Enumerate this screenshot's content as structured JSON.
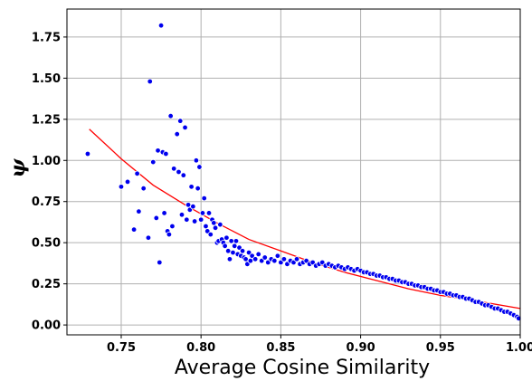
{
  "chart_data": {
    "type": "scatter",
    "title": "",
    "xlabel": "Average Cosine Similarity",
    "ylabel": "ψ",
    "xlim": [
      0.716,
      1.0
    ],
    "ylim": [
      -0.06,
      1.92
    ],
    "xticks": [
      0.75,
      0.8,
      0.85,
      0.9,
      0.95,
      1.0
    ],
    "xtick_labels": [
      "0.75",
      "0.80",
      "0.85",
      "0.90",
      "0.95",
      "1.00"
    ],
    "yticks": [
      0.0,
      0.25,
      0.5,
      0.75,
      1.0,
      1.25,
      1.5,
      1.75
    ],
    "ytick_labels": [
      "0.00",
      "0.25",
      "0.50",
      "0.75",
      "1.00",
      "1.25",
      "1.50",
      "1.75"
    ],
    "grid": true,
    "colors": {
      "points": "#0000ee",
      "fit": "#ff0000"
    },
    "series": [
      {
        "kind": "points",
        "x": [
          0.729,
          0.75,
          0.754,
          0.758,
          0.76,
          0.761,
          0.764,
          0.767,
          0.768,
          0.77,
          0.772,
          0.773,
          0.774,
          0.775,
          0.776,
          0.777,
          0.778,
          0.779,
          0.78,
          0.781,
          0.782,
          0.783,
          0.785,
          0.786,
          0.787,
          0.788,
          0.789,
          0.79,
          0.791,
          0.792,
          0.793,
          0.794,
          0.795,
          0.796,
          0.797,
          0.798,
          0.799,
          0.8,
          0.801,
          0.802,
          0.803,
          0.804,
          0.805,
          0.806,
          0.807,
          0.808,
          0.809,
          0.81,
          0.811,
          0.812,
          0.813,
          0.814,
          0.815,
          0.816,
          0.817,
          0.818,
          0.819,
          0.82,
          0.821,
          0.822,
          0.823,
          0.824,
          0.825,
          0.826,
          0.827,
          0.828,
          0.829,
          0.83,
          0.831,
          0.832,
          0.834,
          0.836,
          0.838,
          0.84,
          0.842,
          0.844,
          0.846,
          0.848,
          0.85,
          0.852,
          0.854,
          0.856,
          0.858,
          0.86,
          0.862,
          0.864,
          0.866,
          0.868,
          0.87,
          0.872,
          0.874,
          0.876,
          0.878,
          0.88,
          0.882,
          0.884,
          0.886,
          0.888,
          0.89,
          0.892,
          0.894,
          0.896,
          0.898,
          0.9,
          0.902,
          0.904,
          0.906,
          0.908,
          0.91,
          0.912,
          0.914,
          0.916,
          0.918,
          0.92,
          0.922,
          0.924,
          0.926,
          0.928,
          0.93,
          0.932,
          0.934,
          0.936,
          0.938,
          0.94,
          0.942,
          0.944,
          0.946,
          0.948,
          0.95,
          0.952,
          0.954,
          0.956,
          0.958,
          0.96,
          0.962,
          0.964,
          0.966,
          0.968,
          0.97,
          0.972,
          0.974,
          0.976,
          0.978,
          0.98,
          0.982,
          0.984,
          0.986,
          0.988,
          0.99,
          0.992,
          0.994,
          0.996,
          0.998,
          0.999
        ],
        "y": [
          1.04,
          0.84,
          0.87,
          0.58,
          0.92,
          0.69,
          0.83,
          0.53,
          1.48,
          0.99,
          0.65,
          1.06,
          0.38,
          1.82,
          1.05,
          0.68,
          1.04,
          0.57,
          0.55,
          1.27,
          0.6,
          0.95,
          1.16,
          0.93,
          1.24,
          0.67,
          0.91,
          1.2,
          0.64,
          0.73,
          0.7,
          0.84,
          0.72,
          0.63,
          1.0,
          0.83,
          0.96,
          0.64,
          0.68,
          0.77,
          0.6,
          0.57,
          0.68,
          0.55,
          0.64,
          0.62,
          0.59,
          0.5,
          0.51,
          0.61,
          0.52,
          0.5,
          0.48,
          0.53,
          0.45,
          0.4,
          0.51,
          0.44,
          0.48,
          0.51,
          0.43,
          0.47,
          0.42,
          0.45,
          0.41,
          0.4,
          0.37,
          0.44,
          0.39,
          0.42,
          0.4,
          0.43,
          0.39,
          0.41,
          0.38,
          0.4,
          0.39,
          0.42,
          0.38,
          0.4,
          0.37,
          0.39,
          0.38,
          0.4,
          0.37,
          0.38,
          0.39,
          0.37,
          0.38,
          0.36,
          0.37,
          0.38,
          0.36,
          0.37,
          0.36,
          0.35,
          0.36,
          0.35,
          0.34,
          0.35,
          0.34,
          0.33,
          0.34,
          0.33,
          0.32,
          0.32,
          0.31,
          0.31,
          0.3,
          0.3,
          0.29,
          0.29,
          0.28,
          0.28,
          0.27,
          0.27,
          0.26,
          0.26,
          0.25,
          0.25,
          0.24,
          0.24,
          0.23,
          0.23,
          0.22,
          0.22,
          0.21,
          0.21,
          0.2,
          0.2,
          0.19,
          0.19,
          0.18,
          0.18,
          0.17,
          0.17,
          0.16,
          0.16,
          0.15,
          0.14,
          0.14,
          0.13,
          0.12,
          0.12,
          0.11,
          0.1,
          0.1,
          0.09,
          0.08,
          0.08,
          0.07,
          0.06,
          0.05,
          0.04
        ]
      },
      {
        "kind": "fit-curve",
        "x": [
          0.73,
          0.75,
          0.77,
          0.79,
          0.81,
          0.83,
          0.85,
          0.87,
          0.89,
          0.91,
          0.93,
          0.95,
          0.97,
          1.0
        ],
        "y": [
          1.19,
          1.01,
          0.85,
          0.73,
          0.62,
          0.52,
          0.45,
          0.38,
          0.32,
          0.27,
          0.22,
          0.18,
          0.15,
          0.1
        ]
      }
    ]
  }
}
